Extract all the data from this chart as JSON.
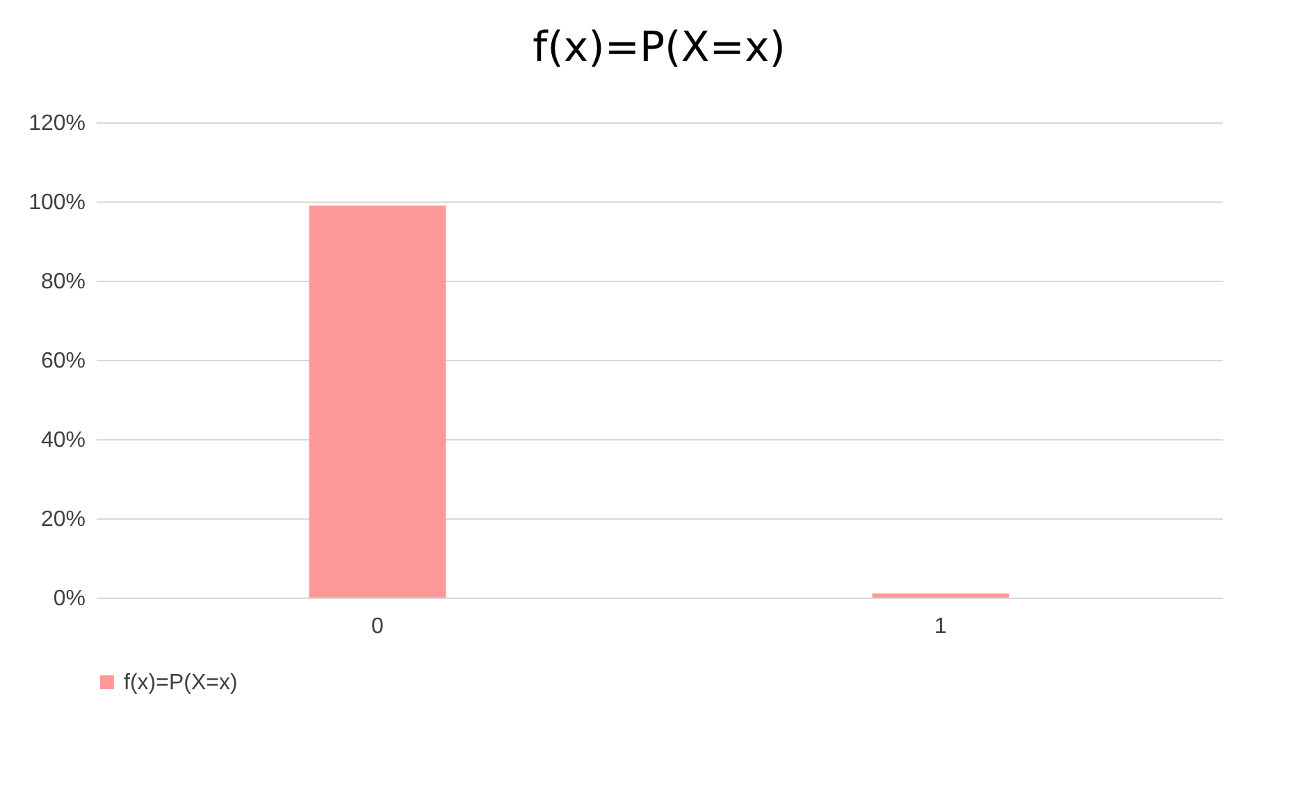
{
  "chart_data": {
    "type": "bar",
    "title": "f(x)=P(X=x)",
    "categories": [
      "0",
      "1"
    ],
    "series": [
      {
        "name": "f(x)=P(X=x)",
        "color": "#ff9999",
        "values": [
          99,
          1
        ]
      }
    ],
    "ylim": [
      0,
      120
    ],
    "yticks": [
      {
        "value": 0,
        "label": "0%"
      },
      {
        "value": 20,
        "label": "20%"
      },
      {
        "value": 40,
        "label": "40%"
      },
      {
        "value": 60,
        "label": "60%"
      },
      {
        "value": 80,
        "label": "80%"
      },
      {
        "value": 100,
        "label": "100%"
      },
      {
        "value": 120,
        "label": "120%"
      }
    ],
    "grid": "y",
    "legend": "bottom"
  }
}
